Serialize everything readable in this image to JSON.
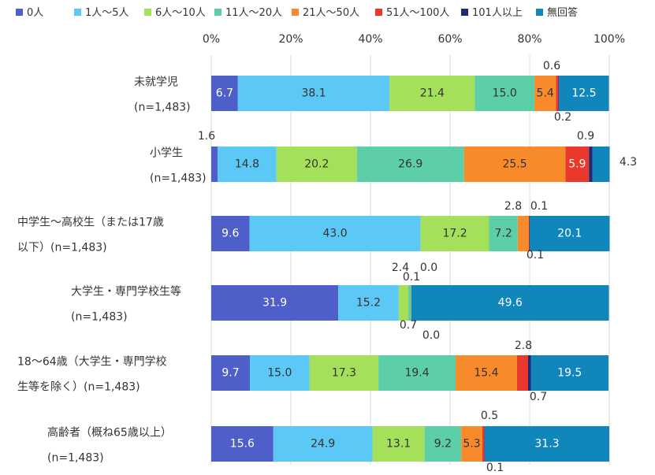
{
  "chart_data": {
    "type": "bar",
    "orientation": "horizontal",
    "stacked": true,
    "percent": true,
    "xlim": [
      0,
      100
    ],
    "ticks": [
      "0%",
      "20%",
      "40%",
      "60%",
      "80%",
      "100%"
    ],
    "grid": true,
    "legend_position": "top",
    "categories": [
      [
        "未就学児",
        "(n=1,483)"
      ],
      [
        "小学生",
        "(n=1,483)"
      ],
      [
        "中学生～高校生（または17歳",
        "以下）(n=1,483)"
      ],
      [
        "大学生・専門学校生等",
        "(n=1,483)"
      ],
      [
        "18～64歳（大学生・専門学校",
        "生等を除く）(n=1,483)"
      ],
      [
        "高齢者（概ね65歳以上）",
        "(n=1,483)"
      ]
    ],
    "series": [
      {
        "name": "0人",
        "color": "#4f5fc9",
        "values": [
          6.7,
          1.6,
          9.6,
          31.9,
          9.7,
          15.6
        ]
      },
      {
        "name": "1人～5人",
        "color": "#5bc8f5",
        "values": [
          38.1,
          14.8,
          43.0,
          15.2,
          15.0,
          24.9
        ]
      },
      {
        "name": "6人～10人",
        "color": "#a4e05a",
        "values": [
          21.4,
          20.2,
          17.2,
          2.4,
          17.3,
          13.1
        ]
      },
      {
        "name": "11人～20人",
        "color": "#5ccfa8",
        "values": [
          15.0,
          26.9,
          7.2,
          0.7,
          19.4,
          9.2
        ]
      },
      {
        "name": "21人～50人",
        "color": "#f78a2b",
        "values": [
          5.4,
          25.5,
          2.8,
          0.1,
          15.4,
          5.3
        ]
      },
      {
        "name": "51人～100人",
        "color": "#e8392c",
        "values": [
          0.6,
          5.9,
          0.1,
          0.0,
          2.8,
          0.5
        ]
      },
      {
        "name": "101人以上",
        "color": "#1e2a78",
        "values": [
          0.2,
          0.9,
          0.1,
          0.0,
          0.7,
          0.1
        ]
      },
      {
        "name": "無回答",
        "color": "#1186bb",
        "values": [
          12.5,
          4.3,
          20.1,
          49.6,
          19.5,
          31.3
        ]
      }
    ]
  }
}
